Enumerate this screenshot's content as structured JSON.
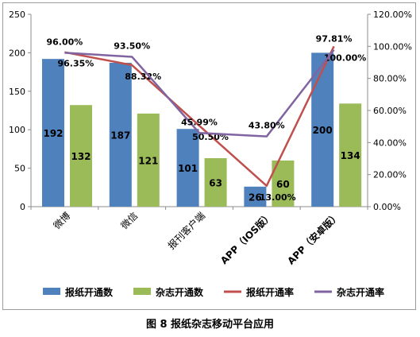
{
  "chart_data": {
    "type": "bar",
    "categories": [
      "微博",
      "微信",
      "报刊客户端",
      "APP（IOS版）",
      "APP（安卓版）"
    ],
    "series": [
      {
        "name": "报纸开通数",
        "kind": "bar",
        "axis": "left",
        "values": [
          192,
          187,
          101,
          26,
          200
        ],
        "color": "#4f81bd"
      },
      {
        "name": "杂志开通数",
        "kind": "bar",
        "axis": "left",
        "values": [
          132,
          121,
          63,
          60,
          134
        ],
        "color": "#9bbb59"
      },
      {
        "name": "报纸开通率",
        "kind": "line",
        "axis": "right",
        "values": [
          96.35,
          88.32,
          50.5,
          13.0,
          100.0
        ],
        "labels": [
          "96.35%",
          "88.32%",
          "50.50%",
          "13.00%",
          "100.00%"
        ],
        "color": "#c0504d"
      },
      {
        "name": "杂志开通率",
        "kind": "line",
        "axis": "right",
        "values": [
          96.0,
          93.5,
          45.99,
          43.8,
          97.81
        ],
        "labels": [
          "96.00%",
          "93.50%",
          "45.99%",
          "43.80%",
          "97.81%"
        ],
        "color": "#8064a2"
      }
    ],
    "ylim": [
      0,
      250
    ],
    "yticks": [
      "0",
      "50",
      "100",
      "150",
      "200",
      "250"
    ],
    "y2lim": [
      0,
      120
    ],
    "y2ticks": [
      "0.00%",
      "20.00%",
      "40.00%",
      "60.00%",
      "80.00%",
      "100.00%",
      "120.00%"
    ],
    "grid": false,
    "legend_position": "bottom"
  },
  "caption": "图 8  报纸杂志移动平台应用"
}
